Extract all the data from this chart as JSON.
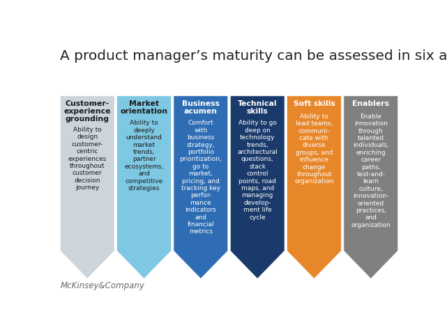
{
  "title": "A product manager’s maturity can be assessed in six areas.",
  "title_fontsize": 14.5,
  "background_color": "#ffffff",
  "footer_text": "McKinsey&Company",
  "columns": [
    {
      "header": "Customer-\nexperience\ngrounding",
      "body": "Ability to\ndesign\ncustomer-\ncentric\nexperiences\nthroughout\ncustomer\ndecision\njourney",
      "color": "#cdd5dc",
      "header_color": "#1a1a1a",
      "body_color": "#1a1a1a"
    },
    {
      "header": "Market\norientation",
      "body": "Ability to\ndeeply\nunderstand\nmarket\ntrends,\npartner\necosystems,\nand\ncompetitive\nstrategies",
      "color": "#7ec8e3",
      "header_color": "#1a1a1a",
      "body_color": "#1a1a1a"
    },
    {
      "header": "Business\nacumen",
      "body": "Comfort\nwith\nbusiness\nstrategy,\nportfolio\nprioritization,\ngo to\nmarket,\npricing, and\ntracking key\nperfor-\nmance\nindicators\nand\nfinancial\nmetrics",
      "color": "#2e6db4",
      "header_color": "#ffffff",
      "body_color": "#ffffff"
    },
    {
      "header": "Technical\nskills",
      "body": "Ability to go\ndeep on\ntechnology\ntrends,\narchitectural\nquestions,\nstack\ncontrol\npoints, road\nmaps, and\nmanaging\ndevelop-\nment life\ncycle",
      "color": "#1a3a6b",
      "header_color": "#ffffff",
      "body_color": "#ffffff"
    },
    {
      "header": "Soft skills",
      "body": "Ability to\nlead teams,\ncommuni-\ncate with\ndiverse\ngroups, and\ninfluence\nchange\nthroughout\norganization",
      "color": "#e8872a",
      "header_color": "#ffffff",
      "body_color": "#ffffff"
    },
    {
      "header": "Enablers",
      "body": "Enable\ninnovation\nthrough\ntalented\nindividuals,\nenriching\ncareer\npaths,\ntest-and-\nlearn\nculture,\ninnovation-\noriented\npractices,\nand\norganization",
      "color": "#808080",
      "header_color": "#ffffff",
      "body_color": "#ffffff"
    }
  ]
}
